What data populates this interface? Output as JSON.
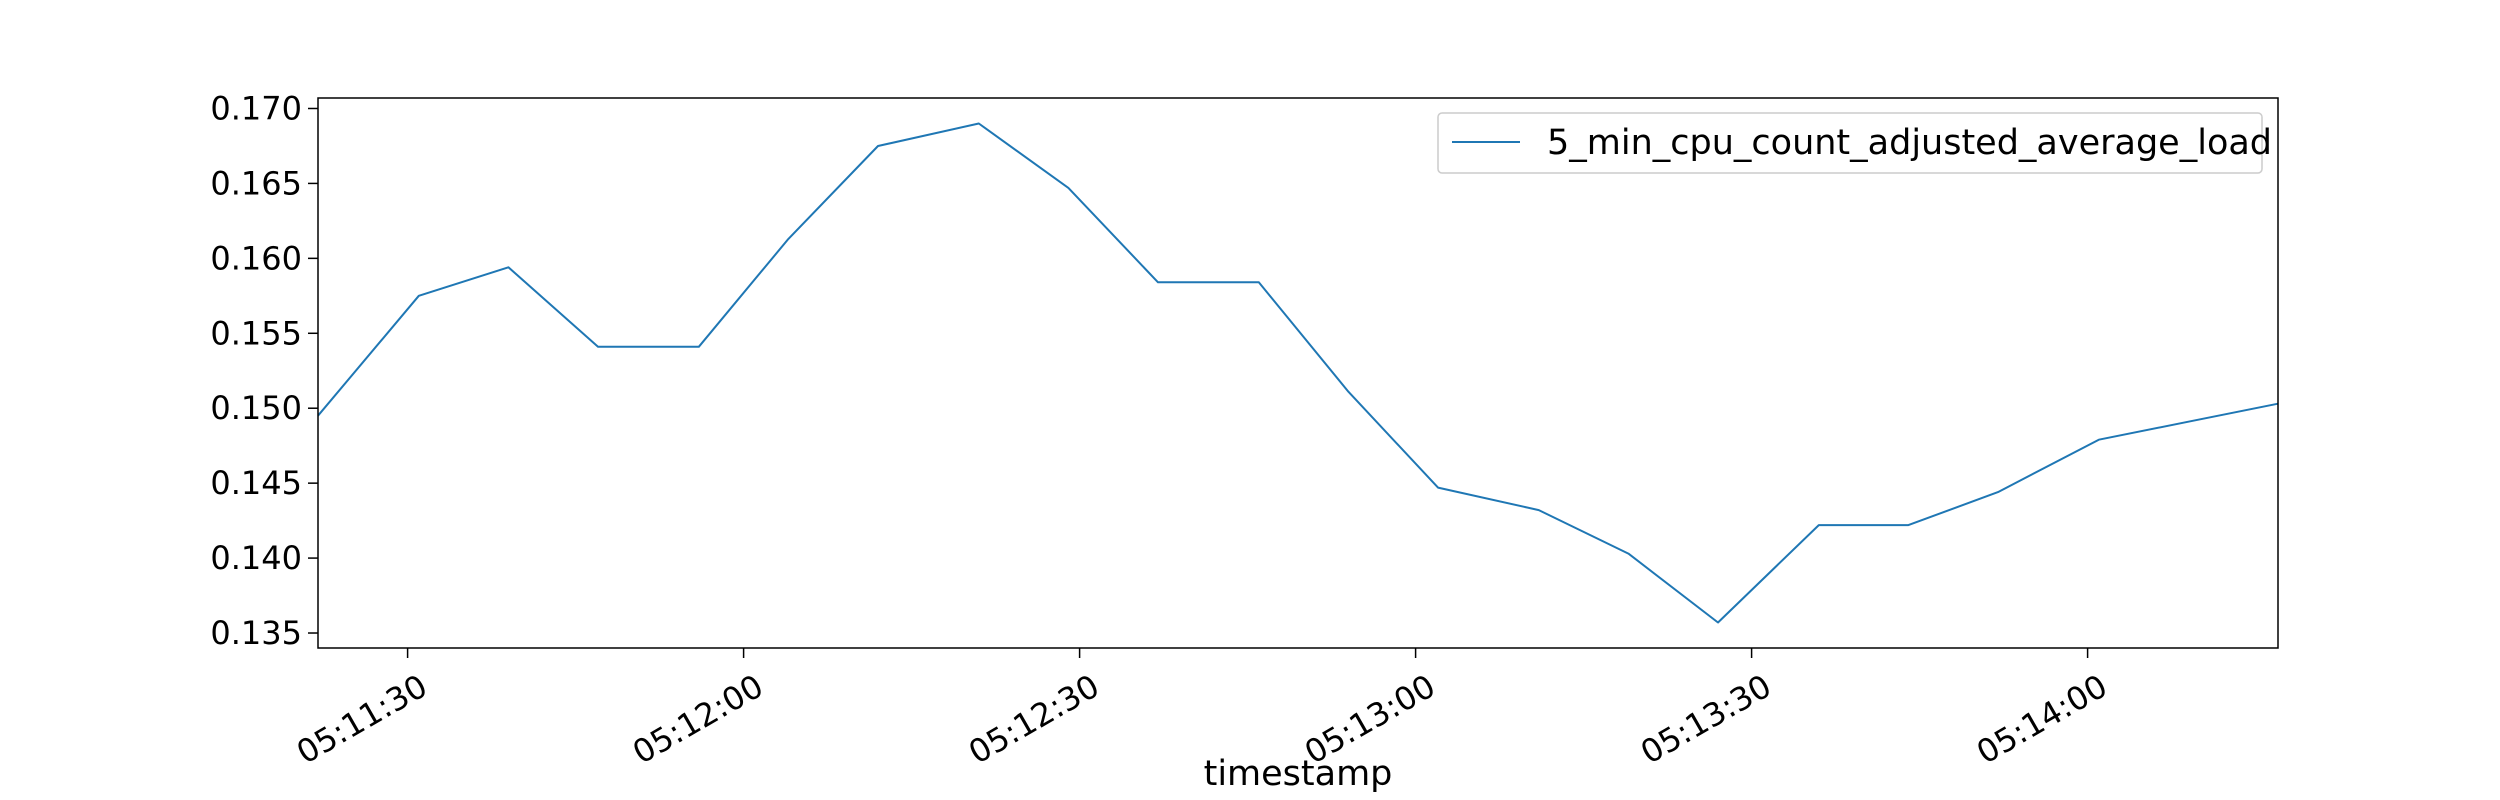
{
  "chart_data": {
    "type": "line",
    "title": "",
    "xlabel": "timestamp",
    "ylabel": "",
    "grid": false,
    "legend_position": "top-right",
    "x_range": [
      "05:11:22",
      "05:14:17"
    ],
    "ylim": [
      0.134,
      0.1707
    ],
    "x_ticks": [
      "05:11:30",
      "05:12:00",
      "05:12:30",
      "05:13:00",
      "05:13:30",
      "05:14:00"
    ],
    "y_ticks": [
      "0.135",
      "0.140",
      "0.145",
      "0.150",
      "0.155",
      "0.160",
      "0.165",
      "0.170"
    ],
    "series": [
      {
        "name": "5_min_cpu_count_adjusted_average_load",
        "color": "#1f77b4",
        "x": [
          "05:11:22",
          "05:11:31",
          "05:11:39",
          "05:11:47",
          "05:11:56",
          "05:12:04",
          "05:12:12",
          "05:12:21",
          "05:12:29",
          "05:12:37",
          "05:12:46",
          "05:12:54",
          "05:13:02",
          "05:13:11",
          "05:13:19",
          "05:13:27",
          "05:13:36",
          "05:13:44",
          "05:13:52",
          "05:14:01",
          "05:14:09",
          "05:14:17"
        ],
        "y": [
          0.1495,
          0.1575,
          0.1594,
          0.1541,
          0.1541,
          0.1613,
          0.1675,
          0.169,
          0.1647,
          0.1584,
          0.1584,
          0.1511,
          0.1447,
          0.1432,
          0.1403,
          0.1357,
          0.1422,
          0.1422,
          0.1444,
          0.1479,
          0.1491,
          0.1503
        ]
      }
    ]
  }
}
